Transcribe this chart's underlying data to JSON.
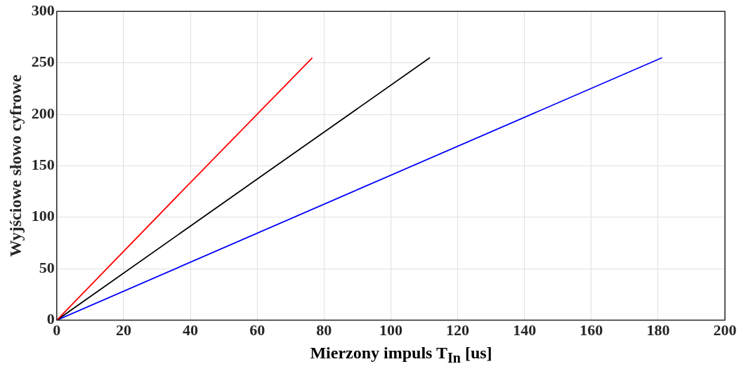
{
  "chart_data": {
    "type": "line",
    "xlabel": "Mierzony impuls T$_{In}$ [us]",
    "ylabel": "Wyjściowe słowo cyfrowe",
    "series": [
      {
        "color": "#ff0000",
        "x": [
          0,
          38,
          76.5
        ],
        "values": [
          0,
          127,
          255
        ]
      },
      {
        "color": "#000000",
        "x": [
          0,
          56,
          111.7
        ],
        "values": [
          0,
          128,
          255
        ]
      },
      {
        "color": "#0000ff",
        "x": [
          0,
          90.5,
          181.2
        ],
        "values": [
          0,
          127.5,
          255
        ]
      }
    ],
    "xlim": [
      0,
      200
    ],
    "xticks": [
      0,
      20,
      40,
      60,
      80,
      100,
      120,
      140,
      160,
      180,
      200
    ],
    "ylim": [
      0,
      300
    ],
    "yticks": [
      0,
      50,
      100,
      150,
      200,
      250,
      300
    ],
    "grid": true,
    "line_style": "solid",
    "marker": "none"
  }
}
